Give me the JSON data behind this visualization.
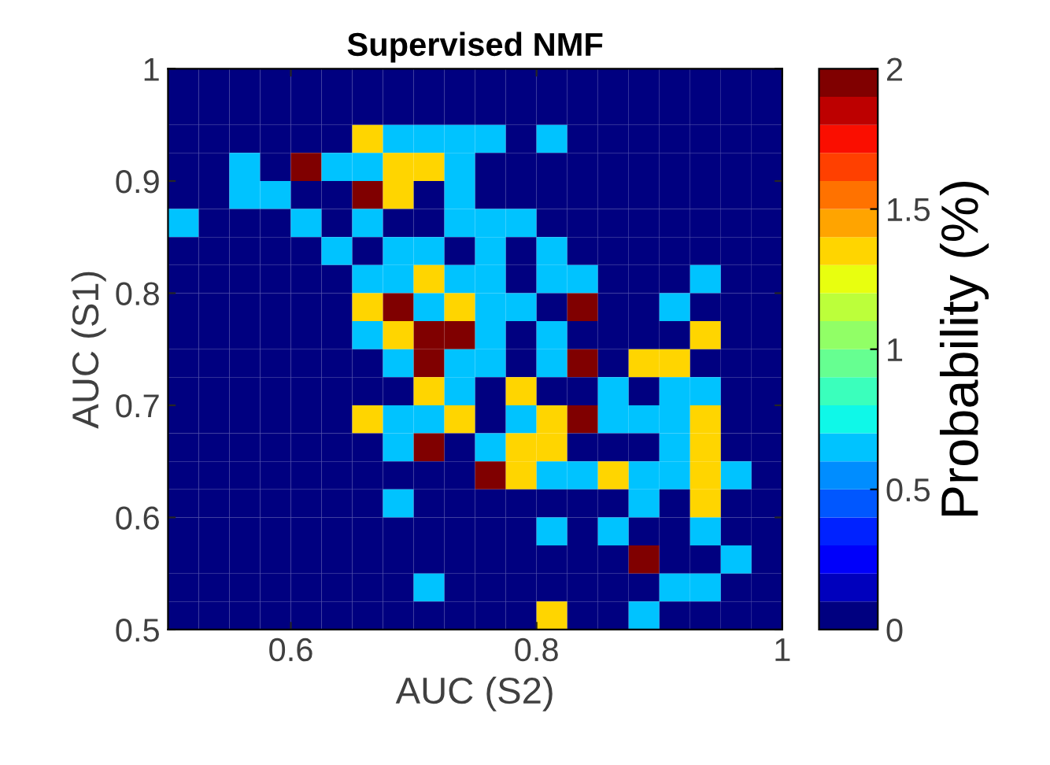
{
  "chart_data": {
    "type": "heatmap",
    "title": "Supervised NMF",
    "xlabel": "AUC (S2)",
    "ylabel": "AUC (S1)",
    "clabel": "Probability (%)",
    "xlim": [
      0.5,
      1
    ],
    "ylim": [
      0.5,
      1
    ],
    "xticks": [
      0.6,
      0.8,
      1
    ],
    "yticks": [
      0.5,
      0.6,
      0.7,
      0.8,
      0.9,
      1
    ],
    "clim": [
      0,
      2
    ],
    "cticks": [
      0,
      0.5,
      1,
      1.5,
      2
    ],
    "grid": false,
    "cells": [
      [
        0,
        0,
        0,
        0,
        0,
        0,
        0,
        0,
        0,
        0,
        0,
        0,
        0,
        0,
        0,
        0,
        0,
        0,
        0,
        0
      ],
      [
        0,
        0,
        0,
        0,
        0,
        0,
        0,
        0,
        0,
        0,
        0,
        0,
        0,
        0,
        0,
        0,
        0,
        0,
        0,
        0
      ],
      [
        0,
        0,
        0,
        0,
        0,
        0,
        1.3,
        0.65,
        0.65,
        0.65,
        0.65,
        0,
        0.65,
        0,
        0,
        0,
        0,
        0,
        0,
        0
      ],
      [
        0,
        0,
        0.65,
        0,
        1.95,
        0.65,
        0.65,
        1.3,
        1.3,
        0.65,
        0,
        0,
        0,
        0,
        0,
        0,
        0,
        0,
        0,
        0
      ],
      [
        0,
        0,
        0.65,
        0.65,
        0,
        0,
        1.95,
        1.3,
        0,
        0.65,
        0,
        0,
        0,
        0,
        0,
        0,
        0,
        0,
        0,
        0
      ],
      [
        0.65,
        0,
        0,
        0,
        0.65,
        0,
        0.65,
        0,
        0,
        0.65,
        0.65,
        0.65,
        0,
        0,
        0,
        0,
        0,
        0,
        0,
        0
      ],
      [
        0,
        0,
        0,
        0,
        0,
        0.65,
        0,
        0.65,
        0.65,
        0,
        0.65,
        0,
        0.65,
        0,
        0,
        0,
        0,
        0,
        0,
        0
      ],
      [
        0,
        0,
        0,
        0,
        0,
        0,
        0.65,
        0.65,
        1.3,
        0.65,
        0.65,
        0,
        0.65,
        0.65,
        0,
        0,
        0,
        0.65,
        0,
        0
      ],
      [
        0,
        0,
        0,
        0,
        0,
        0,
        1.3,
        1.95,
        0.65,
        1.3,
        0.65,
        0.65,
        0,
        1.95,
        0,
        0,
        0.65,
        0,
        0,
        0
      ],
      [
        0,
        0,
        0,
        0,
        0,
        0,
        0.65,
        1.3,
        1.95,
        1.95,
        0.65,
        0,
        0.65,
        0,
        0,
        0,
        0,
        1.3,
        0,
        0
      ],
      [
        0,
        0,
        0,
        0,
        0,
        0,
        0,
        0.65,
        1.95,
        0.65,
        0.65,
        0,
        0.65,
        1.95,
        0,
        1.3,
        1.3,
        0,
        0,
        0
      ],
      [
        0,
        0,
        0,
        0,
        0,
        0,
        0,
        0,
        1.3,
        0.65,
        0,
        1.3,
        0,
        0,
        0.65,
        0,
        0.65,
        0.65,
        0,
        0
      ],
      [
        0,
        0,
        0,
        0,
        0,
        0,
        1.3,
        0.65,
        0.65,
        1.3,
        0,
        0.65,
        1.3,
        1.95,
        0.65,
        0.65,
        0.65,
        1.3,
        0,
        0
      ],
      [
        0,
        0,
        0,
        0,
        0,
        0,
        0,
        0.65,
        1.95,
        0,
        0.65,
        1.3,
        1.3,
        0,
        0,
        0,
        0.65,
        1.3,
        0,
        0
      ],
      [
        0,
        0,
        0,
        0,
        0,
        0,
        0,
        0,
        0,
        0,
        1.95,
        1.3,
        0.65,
        0.65,
        1.3,
        0.65,
        0.65,
        1.3,
        0.65,
        0
      ],
      [
        0,
        0,
        0,
        0,
        0,
        0,
        0,
        0.65,
        0,
        0,
        0,
        0,
        0,
        0,
        0,
        0.65,
        0,
        1.3,
        0,
        0
      ],
      [
        0,
        0,
        0,
        0,
        0,
        0,
        0,
        0,
        0,
        0,
        0,
        0,
        0.65,
        0,
        0.65,
        0,
        0,
        0.65,
        0,
        0
      ],
      [
        0,
        0,
        0,
        0,
        0,
        0,
        0,
        0,
        0,
        0,
        0,
        0,
        0,
        0,
        0,
        1.95,
        0,
        0,
        0.65,
        0
      ],
      [
        0,
        0,
        0,
        0,
        0,
        0,
        0,
        0,
        0.65,
        0,
        0,
        0,
        0,
        0,
        0,
        0,
        0.65,
        0.65,
        0,
        0
      ],
      [
        0,
        0,
        0,
        0,
        0,
        0,
        0,
        0,
        0,
        0,
        0,
        0,
        1.3,
        0,
        0,
        0.65,
        0,
        0,
        0,
        0
      ]
    ]
  }
}
